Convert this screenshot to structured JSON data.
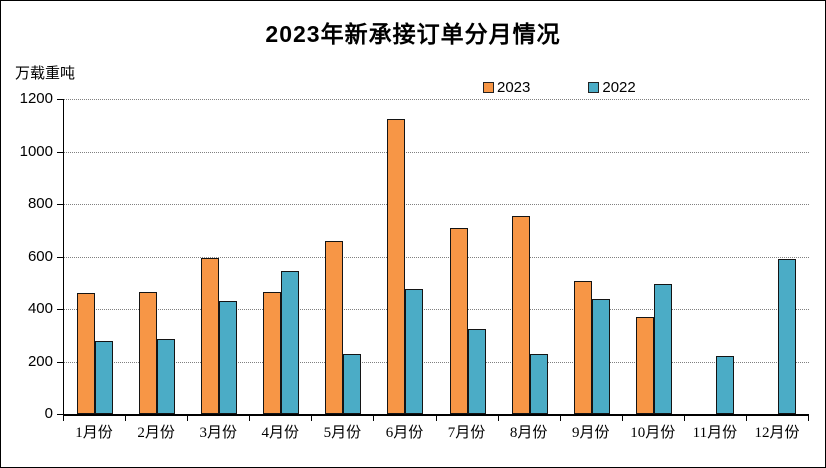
{
  "chart_data": {
    "type": "bar",
    "title": "2023年新承接订单分月情况",
    "xlabel": "",
    "ylabel": "万载重吨",
    "categories": [
      "1月份",
      "2月份",
      "3月份",
      "4月份",
      "5月份",
      "6月份",
      "7月份",
      "8月份",
      "9月份",
      "10月份",
      "11月份",
      "12月份"
    ],
    "series": [
      {
        "name": "2023",
        "color": "#F79646",
        "values": [
          460,
          465,
          595,
          465,
          660,
          1125,
          710,
          755,
          505,
          370,
          0,
          0
        ]
      },
      {
        "name": "2022",
        "color": "#4BACC6",
        "values": [
          280,
          285,
          430,
          545,
          230,
          475,
          325,
          230,
          440,
          495,
          220,
          590
        ]
      }
    ],
    "ylim": [
      0,
      1200
    ],
    "yticks": [
      0,
      200,
      400,
      600,
      800,
      1000,
      1200
    ],
    "grid": true,
    "gridline_style": "dotted",
    "legend_position": "top-center",
    "bar_border_color": "#141414",
    "axis_color": "#000000"
  }
}
